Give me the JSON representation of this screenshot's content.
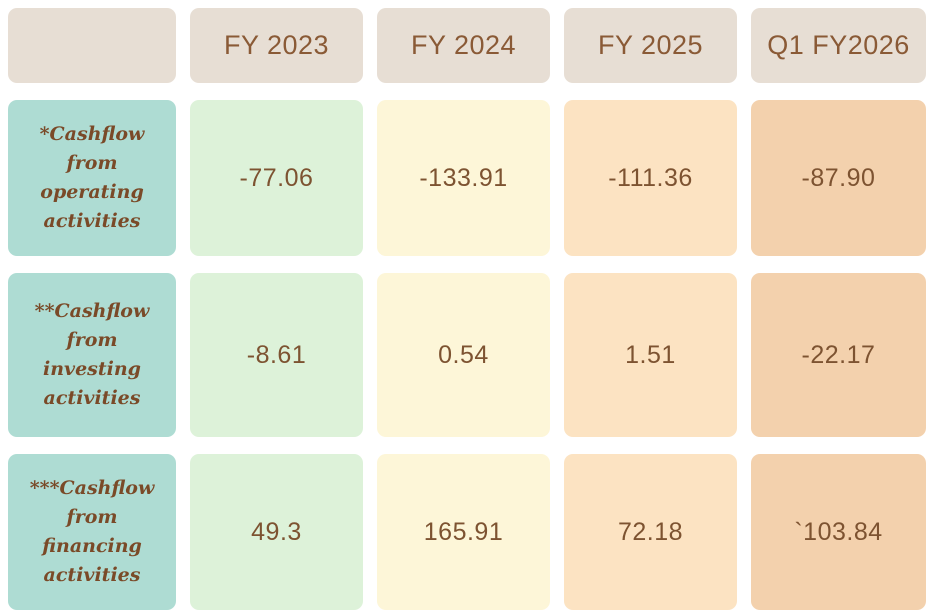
{
  "table": {
    "corner_label": "",
    "columns": [
      {
        "label": "FY 2023",
        "bg": "#ddf2d9"
      },
      {
        "label": "FY 2024",
        "bg": "#fdf6d8"
      },
      {
        "label": "FY 2025",
        "bg": "#fce3c2"
      },
      {
        "label": "Q1 FY2026",
        "bg": "#f3d1ad"
      }
    ],
    "rows": [
      {
        "label": "*Cashflow from operating activities",
        "values": [
          "-77.06",
          "-133.91",
          "-111.36",
          "-87.90"
        ]
      },
      {
        "label": "**Cashflow from investing activities",
        "values": [
          "-8.61",
          "0.54",
          "1.51",
          "-22.17"
        ]
      },
      {
        "label": "***Cashflow from financing activities",
        "values": [
          "49.3",
          "165.91",
          "72.18",
          "`103.84"
        ]
      }
    ],
    "colors": {
      "header_bg": "#e7ded4",
      "label_bg": "#aedcd3",
      "header_text": "#8a5a36",
      "value_text": "#7d5331",
      "label_text": "#7a4a28",
      "page_bg": "#ffffff"
    }
  },
  "chart_data": {
    "type": "table",
    "columns": [
      "FY 2023",
      "FY 2024",
      "FY 2025",
      "Q1 FY2026"
    ],
    "rows": [
      {
        "label": "*Cashflow from operating activities",
        "values": [
          -77.06,
          -133.91,
          -111.36,
          -87.9
        ]
      },
      {
        "label": "**Cashflow from investing activities",
        "values": [
          -8.61,
          0.54,
          1.51,
          -22.17
        ]
      },
      {
        "label": "***Cashflow from financing activities",
        "values": [
          49.3,
          165.91,
          72.18,
          103.84
        ]
      }
    ]
  }
}
